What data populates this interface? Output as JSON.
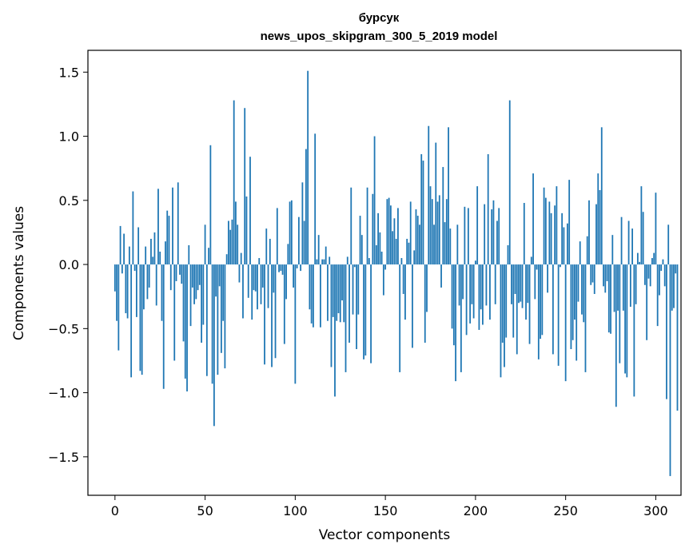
{
  "chart_data": {
    "type": "bar",
    "title": "бурсук",
    "subtitle": "news_upos_skipgram_300_5_2019 model",
    "xlabel": "Vector components",
    "ylabel": "Components values",
    "xlim": [
      -15,
      314
    ],
    "ylim": [
      -1.8,
      1.67
    ],
    "xticks": [
      0,
      50,
      100,
      150,
      200,
      250,
      300
    ],
    "yticks": [
      -1.5,
      -1.0,
      -0.5,
      0.0,
      0.5,
      1.0,
      1.5
    ],
    "xtick_labels": [
      "0",
      "50",
      "100",
      "150",
      "200",
      "250",
      "300"
    ],
    "ytick_labels": [
      "−1.5",
      "−1.0",
      "−0.5",
      "0.0",
      "0.5",
      "1.0",
      "1.5"
    ],
    "grid": false,
    "bar_color": "#1f77b4",
    "values": [
      -0.21,
      -0.44,
      -0.67,
      0.3,
      -0.07,
      0.24,
      -0.38,
      -0.42,
      0.14,
      -0.88,
      0.57,
      -0.05,
      -0.41,
      0.29,
      -0.83,
      -0.86,
      -0.35,
      0.14,
      -0.27,
      -0.18,
      0.2,
      0.06,
      0.25,
      -0.32,
      0.59,
      0.1,
      -0.44,
      -0.97,
      0.18,
      0.42,
      0.38,
      -0.2,
      0.6,
      -0.75,
      -0.13,
      0.64,
      -0.08,
      -0.15,
      -0.6,
      -0.89,
      -0.99,
      0.15,
      -0.48,
      -0.18,
      -0.31,
      -0.27,
      -0.2,
      -0.16,
      -0.61,
      -0.47,
      0.31,
      -0.87,
      0.13,
      0.93,
      -0.93,
      -1.26,
      -0.25,
      -0.86,
      -0.17,
      -0.69,
      -0.44,
      -0.81,
      0.08,
      0.34,
      0.27,
      0.35,
      1.28,
      0.49,
      0.31,
      -0.14,
      0.09,
      -0.42,
      1.22,
      0.53,
      -0.26,
      0.84,
      -0.43,
      -0.2,
      -0.21,
      -0.35,
      0.05,
      -0.31,
      -0.18,
      -0.78,
      0.28,
      -0.34,
      0.2,
      -0.8,
      -0.22,
      -0.73,
      0.44,
      -0.06,
      -0.05,
      -0.08,
      -0.62,
      -0.27,
      0.16,
      0.49,
      0.5,
      -0.18,
      -0.93,
      -0.03,
      0.37,
      -0.05,
      0.64,
      0.34,
      0.9,
      1.51,
      -0.35,
      -0.46,
      -0.49,
      1.02,
      0.04,
      0.23,
      -0.49,
      0.04,
      0.04,
      0.14,
      -0.44,
      0.06,
      -0.8,
      -0.41,
      -1.03,
      -0.44,
      -0.38,
      -0.45,
      -0.28,
      -0.45,
      -0.84,
      0.06,
      -0.61,
      0.6,
      -0.39,
      -0.02,
      -0.66,
      -0.39,
      0.38,
      0.23,
      -0.74,
      -0.71,
      0.6,
      0.05,
      -0.77,
      0.55,
      1.0,
      0.15,
      0.4,
      0.25,
      0.1,
      -0.24,
      -0.04,
      0.51,
      0.52,
      0.46,
      0.26,
      0.36,
      0.2,
      0.44,
      -0.84,
      0.05,
      -0.23,
      -0.43,
      0.2,
      0.17,
      0.49,
      -0.65,
      0.11,
      0.43,
      0.38,
      0.31,
      0.86,
      0.81,
      -0.61,
      -0.37,
      1.08,
      0.61,
      0.51,
      0.31,
      0.95,
      0.49,
      0.54,
      -0.18,
      0.76,
      0.33,
      0.51,
      1.07,
      0.28,
      -0.5,
      -0.63,
      -0.91,
      0.31,
      -0.32,
      -0.84,
      -0.27,
      0.45,
      -0.55,
      0.44,
      -0.46,
      -0.31,
      -0.42,
      0.03,
      0.61,
      -0.51,
      -0.35,
      -0.47,
      0.47,
      -0.32,
      0.86,
      -0.43,
      0.43,
      0.5,
      -0.31,
      0.34,
      0.44,
      -0.88,
      -0.61,
      -0.8,
      -0.57,
      0.15,
      1.28,
      -0.31,
      -0.57,
      -0.23,
      -0.7,
      -0.3,
      -0.29,
      -0.34,
      0.48,
      -0.43,
      -0.3,
      -0.62,
      0.06,
      0.71,
      -0.27,
      -0.04,
      -0.74,
      -0.58,
      -0.55,
      0.6,
      0.52,
      -0.22,
      0.49,
      0.4,
      -0.7,
      0.46,
      0.61,
      -0.79,
      -0.02,
      0.4,
      0.29,
      -0.91,
      0.32,
      0.66,
      -0.66,
      -0.59,
      -0.43,
      -0.75,
      -0.29,
      0.18,
      -0.39,
      -0.45,
      -0.84,
      0.22,
      0.5,
      -0.16,
      -0.14,
      -0.23,
      0.47,
      0.71,
      0.58,
      1.07,
      -0.17,
      -0.22,
      -0.13,
      -0.53,
      -0.54,
      0.23,
      -0.37,
      -1.11,
      -0.36,
      -0.77,
      0.37,
      -0.36,
      -0.85,
      -0.88,
      0.34,
      -0.33,
      0.28,
      -1.03,
      -0.31,
      0.09,
      0.02,
      0.61,
      0.41,
      -0.16,
      -0.59,
      -0.11,
      -0.17,
      0.05,
      0.09,
      0.56,
      -0.48,
      -0.24,
      -0.05,
      0.04,
      -0.17,
      -1.05,
      0.31,
      -1.65,
      -0.36,
      -0.34,
      -0.07,
      -1.14
    ]
  }
}
